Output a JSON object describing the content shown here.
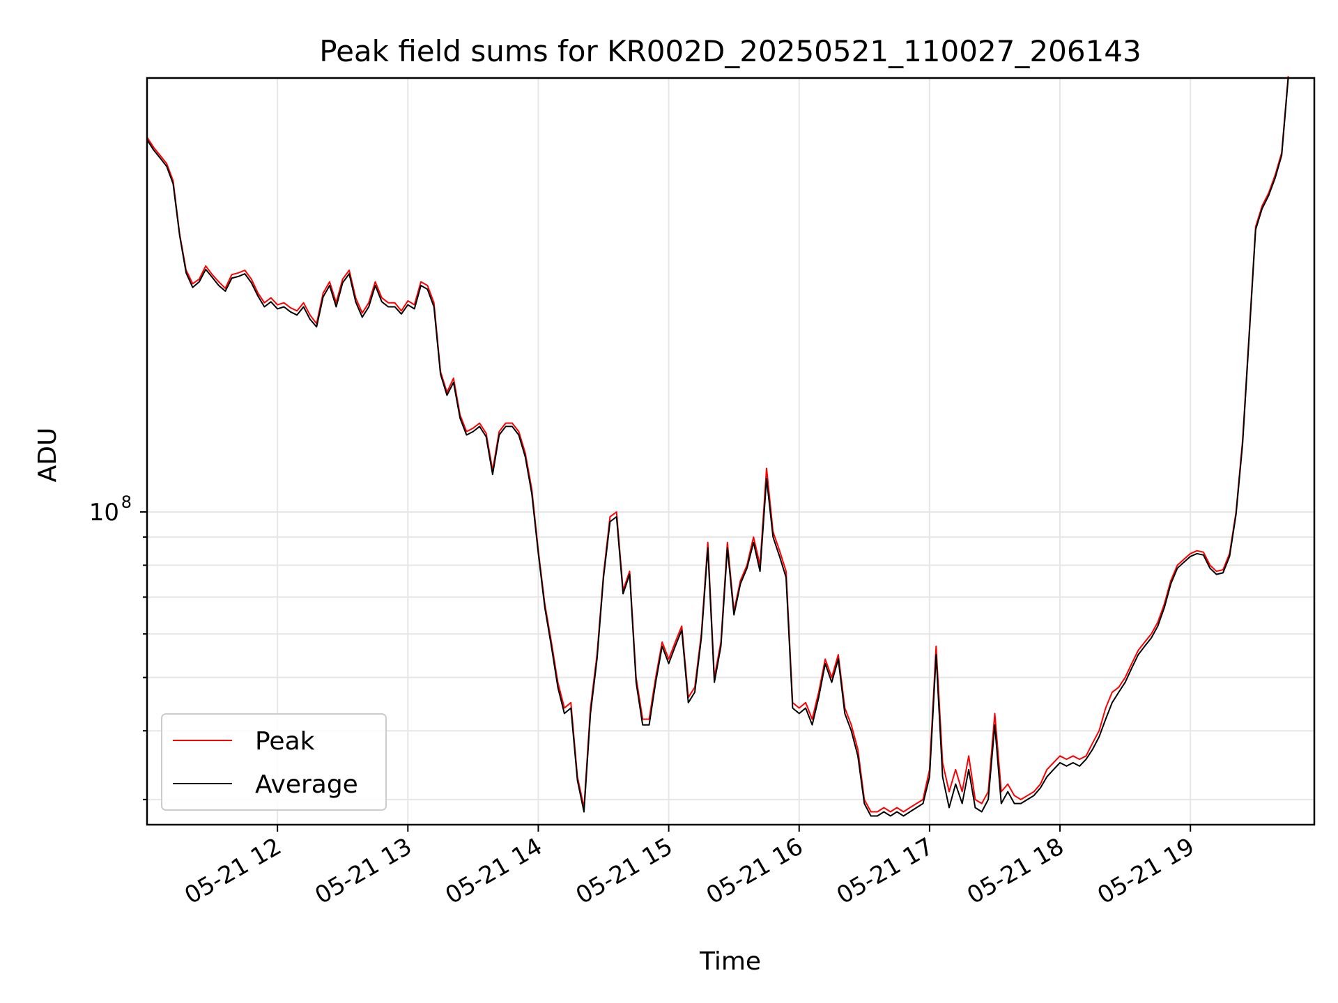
{
  "chart_data": {
    "type": "line",
    "title": "Peak field sums for KR002D_20250521_110027_206143",
    "xlabel": "Time",
    "ylabel": "ADU",
    "y_scale": "log",
    "x_ticks": [
      "05-21 12",
      "05-21 13",
      "05-21 14",
      "05-21 15",
      "05-21 16",
      "05-21 17",
      "05-21 18",
      "05-21 19"
    ],
    "x_tick_hours": [
      12,
      13,
      14,
      15,
      16,
      17,
      18,
      19
    ],
    "xlim_hours": [
      11.0,
      19.95
    ],
    "ylim": [
      27000000,
      615000000
    ],
    "y_major_ticks": [
      {
        "value": 100000000,
        "base": "10",
        "exp": "8"
      }
    ],
    "y_minor_ticks": [
      30000000,
      40000000,
      50000000,
      60000000,
      70000000,
      80000000,
      90000000
    ],
    "grid": true,
    "legend_position": "lower-left",
    "series": [
      {
        "name": "Peak",
        "color": "#ff0000"
      },
      {
        "name": "Average",
        "color": "#000000"
      }
    ],
    "hours": [
      11.0,
      11.05,
      11.1,
      11.15,
      11.2,
      11.25,
      11.3,
      11.35,
      11.4,
      11.45,
      11.5,
      11.55,
      11.6,
      11.65,
      11.7,
      11.75,
      11.8,
      11.85,
      11.9,
      11.95,
      12.0,
      12.05,
      12.1,
      12.15,
      12.2,
      12.25,
      12.3,
      12.35,
      12.4,
      12.45,
      12.5,
      12.55,
      12.6,
      12.65,
      12.7,
      12.75,
      12.8,
      12.85,
      12.9,
      12.95,
      13.0,
      13.05,
      13.1,
      13.15,
      13.2,
      13.25,
      13.3,
      13.35,
      13.4,
      13.45,
      13.5,
      13.55,
      13.6,
      13.65,
      13.7,
      13.75,
      13.8,
      13.85,
      13.9,
      13.95,
      14.0,
      14.05,
      14.1,
      14.15,
      14.2,
      14.25,
      14.3,
      14.35,
      14.4,
      14.45,
      14.5,
      14.55,
      14.6,
      14.65,
      14.7,
      14.75,
      14.8,
      14.85,
      14.9,
      14.95,
      15.0,
      15.05,
      15.1,
      15.15,
      15.2,
      15.25,
      15.3,
      15.35,
      15.4,
      15.45,
      15.5,
      15.55,
      15.6,
      15.65,
      15.7,
      15.75,
      15.8,
      15.85,
      15.9,
      15.95,
      16.0,
      16.05,
      16.1,
      16.15,
      16.2,
      16.25,
      16.3,
      16.35,
      16.4,
      16.45,
      16.5,
      16.55,
      16.6,
      16.65,
      16.7,
      16.75,
      16.8,
      16.85,
      16.9,
      16.95,
      17.0,
      17.05,
      17.1,
      17.15,
      17.2,
      17.25,
      17.3,
      17.35,
      17.4,
      17.45,
      17.5,
      17.55,
      17.6,
      17.65,
      17.7,
      17.75,
      17.8,
      17.85,
      17.9,
      17.95,
      18.0,
      18.05,
      18.1,
      18.15,
      18.2,
      18.25,
      18.3,
      18.35,
      18.4,
      18.45,
      18.5,
      18.55,
      18.6,
      18.65,
      18.7,
      18.75,
      18.8,
      18.85,
      18.9,
      18.95,
      19.0,
      19.05,
      19.1,
      19.15,
      19.2,
      19.25,
      19.3,
      19.35,
      19.4,
      19.45,
      19.5,
      19.55,
      19.6,
      19.65,
      19.7,
      19.75,
      19.8,
      19.85,
      19.9,
      19.95
    ],
    "peak": [
      480000000,
      460000000,
      445000000,
      430000000,
      400000000,
      320000000,
      275000000,
      260000000,
      265000000,
      280000000,
      270000000,
      262000000,
      255000000,
      270000000,
      272000000,
      275000000,
      265000000,
      250000000,
      240000000,
      245000000,
      238000000,
      240000000,
      235000000,
      232000000,
      240000000,
      228000000,
      220000000,
      250000000,
      262000000,
      240000000,
      265000000,
      275000000,
      245000000,
      230000000,
      240000000,
      262000000,
      245000000,
      240000000,
      240000000,
      232000000,
      242000000,
      238000000,
      262000000,
      258000000,
      240000000,
      180000000,
      165000000,
      175000000,
      150000000,
      140000000,
      142000000,
      145000000,
      139000000,
      119000000,
      140000000,
      145000000,
      145000000,
      140000000,
      128000000,
      110000000,
      85000000,
      68000000,
      58000000,
      49000000,
      44000000,
      45000000,
      33000000,
      29000000,
      44000000,
      55000000,
      77000000,
      98000000,
      100000000,
      72000000,
      78000000,
      50000000,
      42000000,
      42000000,
      50000000,
      58000000,
      54000000,
      58000000,
      62000000,
      46000000,
      48000000,
      60000000,
      88000000,
      50000000,
      58000000,
      88000000,
      66000000,
      75000000,
      80000000,
      90000000,
      80000000,
      120000000,
      92000000,
      85000000,
      78000000,
      45000000,
      44000000,
      45000000,
      42000000,
      47000000,
      54000000,
      50000000,
      55000000,
      44000000,
      41000000,
      37000000,
      30000000,
      28500000,
      28500000,
      29000000,
      28500000,
      29000000,
      28500000,
      29000000,
      29500000,
      30000000,
      34000000,
      57000000,
      35000000,
      31000000,
      34000000,
      31000000,
      36000000,
      30000000,
      29500000,
      31000000,
      43000000,
      31000000,
      32000000,
      30500000,
      30000000,
      30500000,
      31000000,
      32000000,
      34000000,
      35000000,
      36000000,
      35500000,
      36000000,
      35500000,
      36000000,
      38000000,
      40000000,
      44000000,
      47000000,
      48000000,
      50000000,
      53000000,
      56000000,
      58000000,
      60000000,
      63000000,
      68000000,
      75000000,
      80000000,
      82000000,
      84000000,
      85000000,
      84500000,
      80000000,
      78000000,
      78500000,
      84000000,
      100000000,
      135000000,
      210000000,
      330000000,
      360000000,
      380000000,
      410000000,
      450000000,
      620000000
    ],
    "average": [
      475000000,
      455000000,
      440000000,
      425000000,
      395000000,
      318000000,
      272000000,
      256000000,
      262000000,
      276000000,
      267000000,
      258000000,
      252000000,
      266000000,
      268000000,
      271000000,
      261000000,
      247000000,
      236000000,
      241000000,
      234000000,
      236000000,
      231000000,
      228000000,
      236000000,
      224000000,
      217000000,
      246000000,
      258000000,
      236000000,
      261000000,
      271000000,
      241000000,
      226000000,
      236000000,
      258000000,
      241000000,
      236000000,
      236000000,
      229000000,
      238000000,
      234000000,
      258000000,
      254000000,
      236000000,
      178000000,
      163000000,
      172000000,
      148000000,
      138000000,
      140000000,
      143000000,
      137000000,
      117000000,
      138000000,
      143000000,
      143000000,
      138000000,
      126000000,
      108000000,
      84000000,
      67000000,
      57000000,
      48000000,
      43000000,
      44000000,
      32500000,
      28500000,
      43000000,
      54000000,
      76000000,
      96000000,
      98000000,
      71000000,
      77000000,
      49000000,
      41000000,
      41000000,
      49000000,
      57000000,
      53000000,
      57000000,
      61000000,
      45000000,
      47000000,
      59000000,
      86000000,
      49000000,
      57000000,
      86000000,
      65000000,
      74000000,
      79000000,
      88000000,
      78000000,
      115000000,
      90000000,
      83000000,
      76000000,
      44000000,
      43000000,
      44000000,
      41000000,
      46000000,
      53000000,
      49000000,
      54000000,
      43000000,
      40000000,
      36000000,
      29500000,
      28000000,
      28000000,
      28500000,
      28000000,
      28500000,
      28000000,
      28500000,
      29000000,
      29500000,
      33000000,
      55000000,
      33000000,
      29000000,
      32000000,
      29500000,
      34000000,
      29000000,
      28500000,
      30000000,
      41000000,
      29500000,
      31000000,
      29500000,
      29500000,
      30000000,
      30500000,
      31500000,
      33000000,
      34000000,
      35000000,
      34500000,
      35000000,
      34500000,
      35500000,
      37000000,
      39000000,
      42000000,
      45000000,
      47000000,
      49000000,
      52000000,
      55000000,
      57000000,
      59000000,
      62000000,
      67000000,
      74000000,
      79000000,
      81000000,
      83000000,
      84000000,
      83500000,
      79000000,
      77000000,
      77500000,
      83000000,
      99000000,
      133000000,
      207000000,
      326000000,
      356000000,
      376000000,
      405000000,
      445000000,
      615000000
    ]
  }
}
